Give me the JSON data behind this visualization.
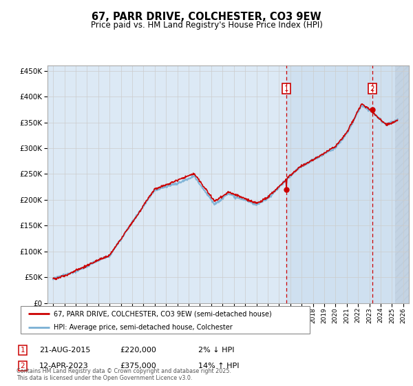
{
  "title": "67, PARR DRIVE, COLCHESTER, CO3 9EW",
  "subtitle": "Price paid vs. HM Land Registry's House Price Index (HPI)",
  "sale1_date": "21-AUG-2015",
  "sale1_price": 220000,
  "sale1_hpi_diff": "2% ↓ HPI",
  "sale2_date": "12-APR-2023",
  "sale2_price": 375000,
  "sale2_hpi_diff": "14% ↑ HPI",
  "legend_line1": "67, PARR DRIVE, COLCHESTER, CO3 9EW (semi-detached house)",
  "legend_line2": "HPI: Average price, semi-detached house, Colchester",
  "footnote": "Contains HM Land Registry data © Crown copyright and database right 2025.\nThis data is licensed under the Open Government Licence v3.0.",
  "price_line_color": "#cc0000",
  "hpi_line_color": "#7ab0d4",
  "background_color": "#dce9f5",
  "shade_color": "#cfe0f0",
  "plot_bg_color": "#ffffff",
  "grid_color": "#cccccc",
  "sale1_year": 2015.64,
  "sale2_year": 2023.27,
  "ylim": [
    0,
    460000
  ],
  "xlim_start": 1994.5,
  "xlim_end": 2026.5
}
